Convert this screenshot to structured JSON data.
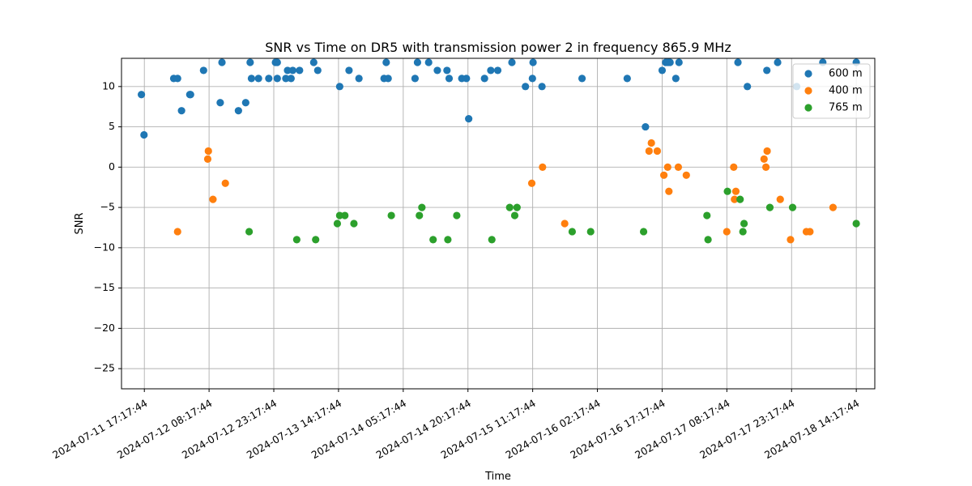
{
  "chart_data": {
    "type": "scatter",
    "title": "SNR vs Time on DR5 with transmission power 2 in frequency 865.9 MHz",
    "xlabel": "Time",
    "ylabel": "SNR",
    "x_is_datetime": true,
    "xlim": [
      "2024-07-11 12:00",
      "2024-07-18 18:35"
    ],
    "ylim": [
      -27.5,
      13.5
    ],
    "x_ticks": [
      "2024-07-11 17:17:44",
      "2024-07-12 08:17:44",
      "2024-07-12 23:17:44",
      "2024-07-13 14:17:44",
      "2024-07-14 05:17:44",
      "2024-07-14 20:17:44",
      "2024-07-15 11:17:44",
      "2024-07-16 02:17:44",
      "2024-07-16 17:17:44",
      "2024-07-17 08:17:44",
      "2024-07-17 23:17:44",
      "2024-07-18 14:17:44"
    ],
    "y_ticks": [
      10,
      5,
      0,
      -5,
      -10,
      -15,
      -20,
      -25
    ],
    "grid": true,
    "legend_position": "top-right",
    "series": [
      {
        "name": "600 m",
        "color": "#1f77b4",
        "points": [
          {
            "x": "2024-07-11 16:37",
            "y": 9
          },
          {
            "x": "2024-07-11 17:13",
            "y": 4
          },
          {
            "x": "2024-07-12 00:06",
            "y": 11
          },
          {
            "x": "2024-07-12 01:00",
            "y": 11
          },
          {
            "x": "2024-07-12 01:55",
            "y": 7
          },
          {
            "x": "2024-07-12 03:50",
            "y": 9
          },
          {
            "x": "2024-07-12 04:00",
            "y": 9
          },
          {
            "x": "2024-07-12 07:01",
            "y": 12
          },
          {
            "x": "2024-07-12 10:53",
            "y": 8
          },
          {
            "x": "2024-07-12 11:17",
            "y": 13
          },
          {
            "x": "2024-07-12 15:06",
            "y": 7
          },
          {
            "x": "2024-07-12 16:47",
            "y": 8
          },
          {
            "x": "2024-07-12 17:49",
            "y": 13
          },
          {
            "x": "2024-07-12 18:07",
            "y": 11
          },
          {
            "x": "2024-07-12 19:45",
            "y": 11
          },
          {
            "x": "2024-07-12 22:08",
            "y": 11
          },
          {
            "x": "2024-07-12 23:41",
            "y": 13
          },
          {
            "x": "2024-07-13 00:06",
            "y": 13
          },
          {
            "x": "2024-07-13 00:06",
            "y": 11
          },
          {
            "x": "2024-07-13 02:05",
            "y": 11
          },
          {
            "x": "2024-07-13 02:29",
            "y": 12
          },
          {
            "x": "2024-07-13 03:18",
            "y": 11
          },
          {
            "x": "2024-07-13 03:41",
            "y": 12
          },
          {
            "x": "2024-07-13 05:16",
            "y": 12
          },
          {
            "x": "2024-07-13 08:33",
            "y": 13
          },
          {
            "x": "2024-07-13 09:29",
            "y": 12
          },
          {
            "x": "2024-07-13 14:34",
            "y": 10
          },
          {
            "x": "2024-07-13 16:44",
            "y": 12
          },
          {
            "x": "2024-07-13 19:02",
            "y": 11
          },
          {
            "x": "2024-07-14 00:51",
            "y": 11
          },
          {
            "x": "2024-07-14 01:21",
            "y": 13
          },
          {
            "x": "2024-07-14 01:48",
            "y": 11
          },
          {
            "x": "2024-07-14 08:02",
            "y": 11
          },
          {
            "x": "2024-07-14 08:36",
            "y": 13
          },
          {
            "x": "2024-07-14 11:11",
            "y": 13
          },
          {
            "x": "2024-07-14 13:12",
            "y": 12
          },
          {
            "x": "2024-07-14 15:26",
            "y": 12
          },
          {
            "x": "2024-07-14 15:56",
            "y": 11
          },
          {
            "x": "2024-07-14 18:52",
            "y": 11
          },
          {
            "x": "2024-07-14 19:56",
            "y": 11
          },
          {
            "x": "2024-07-14 20:28",
            "y": 6
          },
          {
            "x": "2024-07-15 00:08",
            "y": 11
          },
          {
            "x": "2024-07-15 01:35",
            "y": 12
          },
          {
            "x": "2024-07-15 03:12",
            "y": 12
          },
          {
            "x": "2024-07-15 06:29",
            "y": 13
          },
          {
            "x": "2024-07-15 09:37",
            "y": 10
          },
          {
            "x": "2024-07-15 11:14",
            "y": 11
          },
          {
            "x": "2024-07-15 11:23",
            "y": 13
          },
          {
            "x": "2024-07-15 13:27",
            "y": 10
          },
          {
            "x": "2024-07-15 22:44",
            "y": 11
          },
          {
            "x": "2024-07-16 09:12",
            "y": 11
          },
          {
            "x": "2024-07-16 13:26",
            "y": 5
          },
          {
            "x": "2024-07-16 17:18",
            "y": 12
          },
          {
            "x": "2024-07-16 18:07",
            "y": 13
          },
          {
            "x": "2024-07-16 18:40",
            "y": 13
          },
          {
            "x": "2024-07-16 19:08",
            "y": 13
          },
          {
            "x": "2024-07-16 20:28",
            "y": 11
          },
          {
            "x": "2024-07-16 21:12",
            "y": 13
          },
          {
            "x": "2024-07-17 10:52",
            "y": 13
          },
          {
            "x": "2024-07-17 13:03",
            "y": 10
          },
          {
            "x": "2024-07-17 17:34",
            "y": 12
          },
          {
            "x": "2024-07-17 20:04",
            "y": 13
          },
          {
            "x": "2024-07-18 00:29",
            "y": 10
          },
          {
            "x": "2024-07-18 06:32",
            "y": 13
          },
          {
            "x": "2024-07-18 14:17",
            "y": 13
          }
        ]
      },
      {
        "name": "400 m",
        "color": "#ff7f0e",
        "points": [
          {
            "x": "2024-07-12 01:00",
            "y": -8
          },
          {
            "x": "2024-07-12 07:59",
            "y": 1
          },
          {
            "x": "2024-07-12 08:08",
            "y": 2
          },
          {
            "x": "2024-07-12 09:12",
            "y": -4
          },
          {
            "x": "2024-07-12 12:04",
            "y": -2
          },
          {
            "x": "2024-07-15 11:05",
            "y": -2
          },
          {
            "x": "2024-07-15 13:35",
            "y": 0
          },
          {
            "x": "2024-07-15 18:43",
            "y": -7
          },
          {
            "x": "2024-07-16 14:16",
            "y": 2
          },
          {
            "x": "2024-07-16 14:48",
            "y": 3
          },
          {
            "x": "2024-07-16 16:10",
            "y": 2
          },
          {
            "x": "2024-07-16 17:42",
            "y": -1
          },
          {
            "x": "2024-07-16 18:35",
            "y": 0
          },
          {
            "x": "2024-07-16 18:52",
            "y": -3
          },
          {
            "x": "2024-07-16 21:03",
            "y": 0
          },
          {
            "x": "2024-07-16 22:54",
            "y": -1
          },
          {
            "x": "2024-07-17 08:17",
            "y": -8
          },
          {
            "x": "2024-07-17 09:53",
            "y": 0
          },
          {
            "x": "2024-07-17 10:04",
            "y": -4
          },
          {
            "x": "2024-07-17 10:23",
            "y": -3
          },
          {
            "x": "2024-07-17 16:55",
            "y": 1
          },
          {
            "x": "2024-07-17 17:21",
            "y": 0
          },
          {
            "x": "2024-07-17 17:38",
            "y": 2
          },
          {
            "x": "2024-07-17 20:40",
            "y": -4
          },
          {
            "x": "2024-07-17 23:03",
            "y": -9
          },
          {
            "x": "2024-07-18 02:43",
            "y": -8
          },
          {
            "x": "2024-07-18 03:33",
            "y": -8
          },
          {
            "x": "2024-07-18 08:54",
            "y": -5
          }
        ]
      },
      {
        "name": "765 m",
        "color": "#2ca02c",
        "points": [
          {
            "x": "2024-07-12 17:35",
            "y": -8
          },
          {
            "x": "2024-07-13 04:37",
            "y": -9
          },
          {
            "x": "2024-07-13 09:00",
            "y": -9
          },
          {
            "x": "2024-07-13 14:01",
            "y": -7
          },
          {
            "x": "2024-07-13 14:34",
            "y": -6
          },
          {
            "x": "2024-07-13 15:46",
            "y": -6
          },
          {
            "x": "2024-07-13 17:52",
            "y": -7
          },
          {
            "x": "2024-07-14 02:32",
            "y": -6
          },
          {
            "x": "2024-07-14 09:02",
            "y": -6
          },
          {
            "x": "2024-07-14 09:37",
            "y": -5
          },
          {
            "x": "2024-07-14 12:13",
            "y": -9
          },
          {
            "x": "2024-07-14 15:38",
            "y": -9
          },
          {
            "x": "2024-07-14 17:42",
            "y": -6
          },
          {
            "x": "2024-07-15 01:50",
            "y": -9
          },
          {
            "x": "2024-07-15 05:58",
            "y": -5
          },
          {
            "x": "2024-07-15 07:08",
            "y": -6
          },
          {
            "x": "2024-07-15 07:40",
            "y": -5
          },
          {
            "x": "2024-07-15 20:27",
            "y": -8
          },
          {
            "x": "2024-07-16 00:44",
            "y": -8
          },
          {
            "x": "2024-07-16 13:00",
            "y": -8
          },
          {
            "x": "2024-07-17 03:41",
            "y": -6
          },
          {
            "x": "2024-07-17 03:56",
            "y": -9
          },
          {
            "x": "2024-07-17 08:26",
            "y": -3
          },
          {
            "x": "2024-07-17 11:22",
            "y": -4
          },
          {
            "x": "2024-07-17 12:01",
            "y": -8
          },
          {
            "x": "2024-07-17 12:17",
            "y": -7
          },
          {
            "x": "2024-07-17 18:16",
            "y": -5
          },
          {
            "x": "2024-07-17 23:32",
            "y": -5
          },
          {
            "x": "2024-07-18 14:17",
            "y": -7
          }
        ]
      }
    ]
  }
}
